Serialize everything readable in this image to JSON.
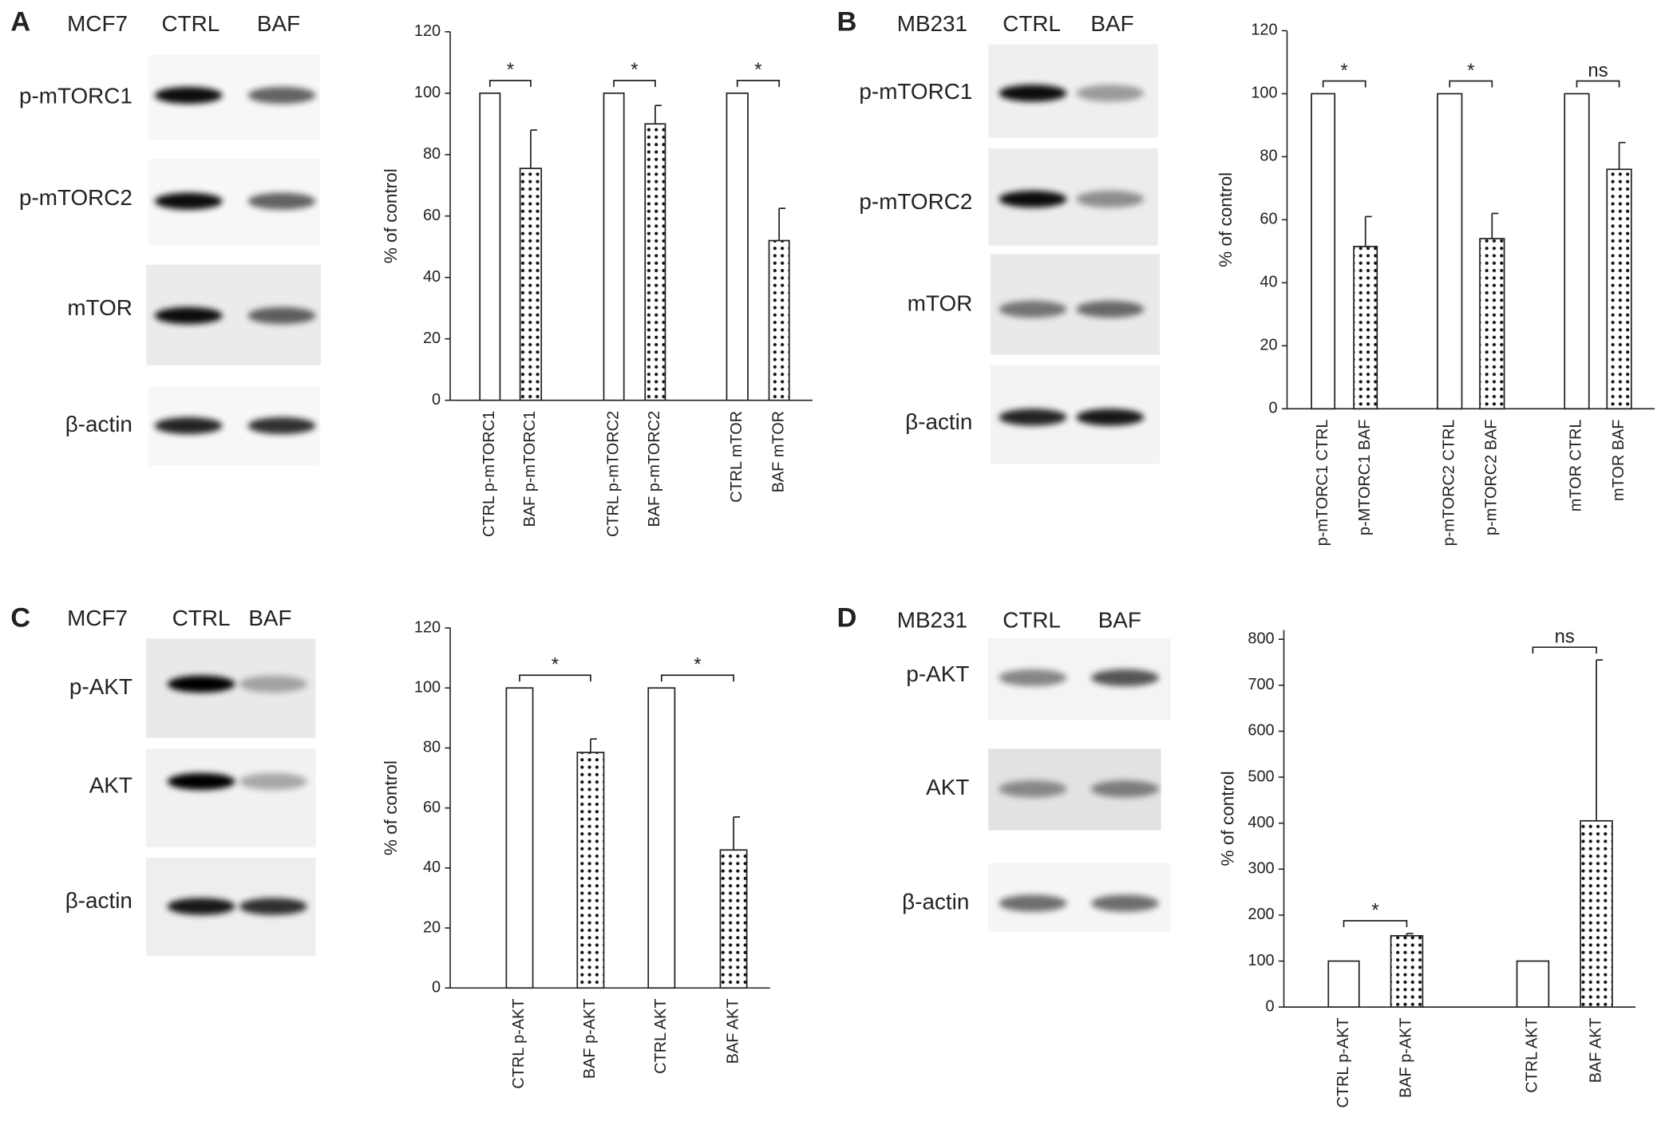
{
  "chart_data": [
    {
      "type": "bar",
      "ylabel": "% of control",
      "categories": [
        "CTRL p-mTORC1",
        "BAF p-mTORC1",
        "CTRL p-mTORC2",
        "BAF p-mTORC2",
        "CTRL mTOR",
        "BAF mTOR"
      ],
      "values": [
        100,
        75.5,
        100,
        90,
        100,
        52
      ],
      "errors": [
        null,
        12.5,
        null,
        6,
        null,
        10.5
      ],
      "fills": [
        "white",
        "dotted",
        "white",
        "dotted",
        "white",
        "dotted"
      ],
      "significance": [
        "*",
        "*",
        "*"
      ],
      "ylim": [
        0,
        120
      ],
      "yticks": [
        0,
        20,
        40,
        60,
        80,
        100,
        120
      ]
    },
    {
      "type": "bar",
      "ylabel": "% of control",
      "categories": [
        "p-mTORC1 CTRL",
        "p-MTORC1 BAF",
        "p-mTORC2 CTRL",
        "p-mTORC2 BAF",
        "mTOR CTRL",
        "mTOR BAF"
      ],
      "values": [
        100,
        51.5,
        100,
        54,
        100,
        76
      ],
      "errors": [
        null,
        9.5,
        null,
        8,
        null,
        8.5
      ],
      "fills": [
        "white",
        "dotted",
        "white",
        "dotted",
        "white",
        "dotted"
      ],
      "significance": [
        "*",
        "*",
        "ns"
      ],
      "ylim": [
        0,
        120
      ],
      "yticks": [
        0,
        20,
        40,
        60,
        80,
        100,
        120
      ]
    },
    {
      "type": "bar",
      "ylabel": "% of control",
      "categories": [
        "CTRL p-AKT",
        "BAF p-AKT",
        "CTRL AKT",
        "BAF AKT"
      ],
      "values": [
        100,
        78.5,
        100,
        46
      ],
      "errors": [
        null,
        4.5,
        null,
        11
      ],
      "fills": [
        "white",
        "dotted",
        "white",
        "dotted"
      ],
      "significance": [
        "*",
        "*"
      ],
      "ylim": [
        0,
        120
      ],
      "yticks": [
        0,
        20,
        40,
        60,
        80,
        100,
        120
      ]
    },
    {
      "type": "bar",
      "ylabel": "% of control",
      "categories": [
        "CTRL p-AKT",
        "BAF p-AKT",
        "CTRL AKT",
        "BAF AKT"
      ],
      "values": [
        100,
        155,
        100,
        405
      ],
      "errors": [
        null,
        5,
        null,
        350
      ],
      "fills": [
        "white",
        "dotted",
        "white",
        "dotted"
      ],
      "significance": [
        "*",
        "ns"
      ],
      "ylim": [
        0,
        820
      ],
      "yticks": [
        0,
        100,
        200,
        300,
        400,
        500,
        600,
        700,
        800
      ]
    }
  ],
  "blots": [
    {
      "panel": "A",
      "cell_line": "MCF7",
      "lanes": [
        "CTRL",
        "BAF"
      ],
      "rows": [
        "p-mTORC1",
        "p-mTORC2",
        "mTOR",
        "β-actin"
      ]
    },
    {
      "panel": "B",
      "cell_line": "MB231",
      "lanes": [
        "CTRL",
        "BAF"
      ],
      "rows": [
        "p-mTORC1",
        "p-mTORC2",
        "mTOR",
        "β-actin"
      ]
    },
    {
      "panel": "C",
      "cell_line": "MCF7",
      "lanes": [
        "CTRL",
        "BAF"
      ],
      "rows": [
        "p-AKT",
        "AKT",
        "β-actin"
      ]
    },
    {
      "panel": "D",
      "cell_line": "MB231",
      "lanes": [
        "CTRL",
        "BAF"
      ],
      "rows": [
        "p-AKT",
        "AKT",
        "β-actin"
      ]
    }
  ]
}
